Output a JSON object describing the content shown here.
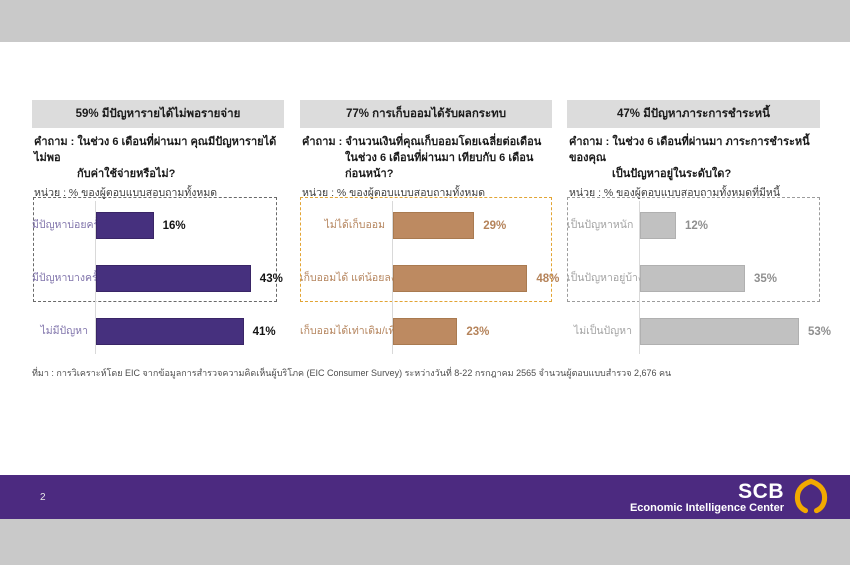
{
  "page": {
    "page_number": "2",
    "footnote": "ที่มา : การวิเคราะห์โดย EIC จากข้อมูลการสำรวจความคิดเห็นผู้บริโภค (EIC Consumer Survey) ระหว่างวันที่ 8-22 กรกฎาคม 2565 จำนวนผู้ตอบแบบสำรวจ 2,676 คน",
    "footer": {
      "brand": "SCB",
      "brand_subtitle": "Economic Intelligence Center",
      "purple": "#4c2a80",
      "gold": "#f2a900"
    },
    "colors": {
      "background_gray": "#c9c9c9",
      "slide_white": "#ffffff",
      "header_box_gray": "#dcdcdc"
    }
  },
  "chart_data": [
    {
      "type": "bar",
      "orientation": "horizontal",
      "title": "59% มีปัญหารายได้ไม่พอรายจ่าย",
      "question_line1": "คำถาม : ในช่วง 6 เดือนที่ผ่านมา คุณมีปัญหารายได้ไม่พอ",
      "question_line2": "กับค่าใช้จ่ายหรือไม่?",
      "unit_label": "หน่วย : % ของผู้ตอบแบบสอบถามทั้งหมด",
      "categories": [
        "มีปัญหาบ่อยครั้ง",
        "มีปัญหาบางครั้ง",
        "ไม่มีปัญหา"
      ],
      "values": [
        16,
        43,
        41
      ],
      "value_labels": [
        "16%",
        "43%",
        "41%"
      ],
      "xlim": [
        0,
        60
      ],
      "grid": false,
      "legend": false,
      "highlighted_rows": [
        0,
        1
      ],
      "bar_color": "#46307e",
      "bar_border_color": "#392566",
      "category_label_color": "#8074ab",
      "value_label_color": "#141414",
      "highlight_box_color": "#696969"
    },
    {
      "type": "bar",
      "orientation": "horizontal",
      "title": "77% การเก็บออมได้รับผลกระทบ",
      "question_line1": "คำถาม : จำนวนเงินที่คุณเก็บออมโดยเฉลี่ยต่อเดือน",
      "question_line2": "ในช่วง 6 เดือนที่ผ่านมา เทียบกับ 6 เดือนก่อนหน้า?",
      "unit_label": "หน่วย : % ของผู้ตอบแบบสอบถามทั้งหมด",
      "categories": [
        "ไม่ได้เก็บออม",
        "เก็บออมได้ แต่น้อยลง",
        "เก็บออมได้เท่าเดิม/เพิ่มขึ้น"
      ],
      "values": [
        29,
        48,
        23
      ],
      "value_labels": [
        "29%",
        "48%",
        "23%"
      ],
      "xlim": [
        0,
        60
      ],
      "grid": false,
      "legend": false,
      "highlighted_rows": [
        0,
        1
      ],
      "bar_color": "#bd8a61",
      "bar_border_color": "#a97a50",
      "category_label_color": "#b5855e",
      "value_label_color": "#b5835a",
      "highlight_box_color": "#e2a434"
    },
    {
      "type": "bar",
      "orientation": "horizontal",
      "title": "47% มีปัญหาภาระการชำระหนี้",
      "question_line1": "คำถาม : ในช่วง 6 เดือนที่ผ่านมา ภาระการชำระหนี้ของคุณ",
      "question_line2": "เป็นปัญหาอยู่ในระดับใด?",
      "unit_label": "หน่วย : % ของผู้ตอบแบบสอบถามทั้งหมดที่มีหนี้",
      "categories": [
        "เป็นปัญหาหนัก",
        "เป็นปัญหาอยู่บ้าง",
        "ไม่เป็นปัญหา"
      ],
      "values": [
        12,
        35,
        53
      ],
      "value_labels": [
        "12%",
        "35%",
        "53%"
      ],
      "xlim": [
        0,
        60
      ],
      "grid": false,
      "legend": false,
      "highlighted_rows": [
        0,
        1
      ],
      "bar_color": "#c1c1c1",
      "bar_border_color": "#b0b0b0",
      "category_label_color": "#a3a3a3",
      "value_label_color": "#8f8f8f",
      "highlight_box_color": "#9c9c9c"
    }
  ]
}
